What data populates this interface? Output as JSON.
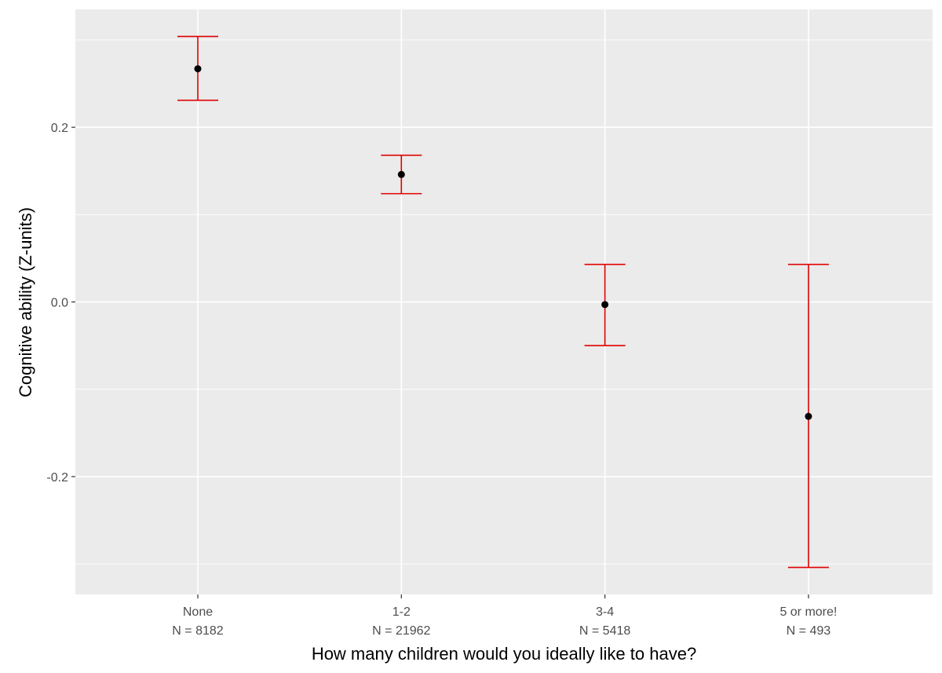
{
  "chart_data": {
    "type": "scatter",
    "subtype": "pointrange-errorbar",
    "title": "",
    "xlabel": "How many children would you ideally like to have?",
    "ylabel": "Cognitive ability (Z-units)",
    "categories": [
      "None",
      "1-2",
      "3-4",
      "5 or more!"
    ],
    "category_counts": [
      "N = 8182",
      "N = 21962",
      "N = 5418",
      "N = 493"
    ],
    "series": [
      {
        "name": "mean",
        "values": [
          0.267,
          0.146,
          -0.003,
          -0.131
        ],
        "lower": [
          0.231,
          0.124,
          -0.05,
          -0.304
        ],
        "upper": [
          0.304,
          0.168,
          0.043,
          0.043
        ]
      }
    ],
    "ylim": [
      -0.335,
      0.335
    ],
    "y_ticks": [
      -0.2,
      0.0,
      0.2
    ],
    "y_tick_labels": [
      "-0.2",
      "0.0",
      "0.2"
    ],
    "y_minor_ticks": [
      -0.3,
      -0.1,
      0.1,
      0.3
    ],
    "grid": true,
    "legend": "none",
    "colors": {
      "panel": "#ebebeb",
      "grid": "#ffffff",
      "errorbar": "#e00000",
      "point": "#000000",
      "tick_text": "#4d4d4d",
      "title_text": "#000000"
    }
  }
}
